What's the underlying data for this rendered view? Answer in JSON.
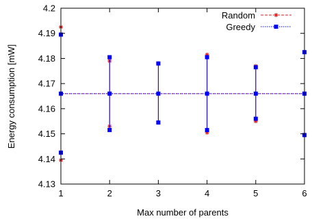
{
  "chart_data": {
    "type": "line",
    "xlabel": "Max number of parents",
    "ylabel": "Energy consumption [mW]",
    "xlim": [
      1,
      6
    ],
    "ylim": [
      4.13,
      4.2
    ],
    "x_ticks": [
      "1",
      "2",
      "3",
      "4",
      "5",
      "6"
    ],
    "y_ticks": [
      "4.13",
      "4.14",
      "4.15",
      "4.16",
      "4.17",
      "4.18",
      "4.19",
      "4.2"
    ],
    "legend_position": "top-right",
    "grid": false,
    "series": [
      {
        "name": "Random",
        "color": "#e41a1c",
        "marker": "star",
        "line": "dashed",
        "x": [
          1,
          2,
          3,
          4,
          5,
          6
        ],
        "y": [
          4.166,
          4.166,
          4.166,
          4.166,
          4.166,
          4.166
        ],
        "y_low": [
          4.1395,
          4.153,
          4.1545,
          4.1505,
          4.155,
          4.1495
        ],
        "y_high": [
          4.1925,
          4.179,
          4.178,
          4.1815,
          4.177,
          4.1825
        ]
      },
      {
        "name": "Greedy",
        "color": "#0000ff",
        "marker": "square",
        "line": "dotted",
        "x": [
          1,
          2,
          3,
          4,
          5,
          6
        ],
        "y": [
          4.166,
          4.166,
          4.166,
          4.166,
          4.166,
          4.166
        ],
        "y_low": [
          4.1425,
          4.1515,
          4.1545,
          4.1515,
          4.156,
          4.1495
        ],
        "y_high": [
          4.1895,
          4.1805,
          4.178,
          4.1805,
          4.1765,
          4.1825
        ]
      }
    ]
  }
}
